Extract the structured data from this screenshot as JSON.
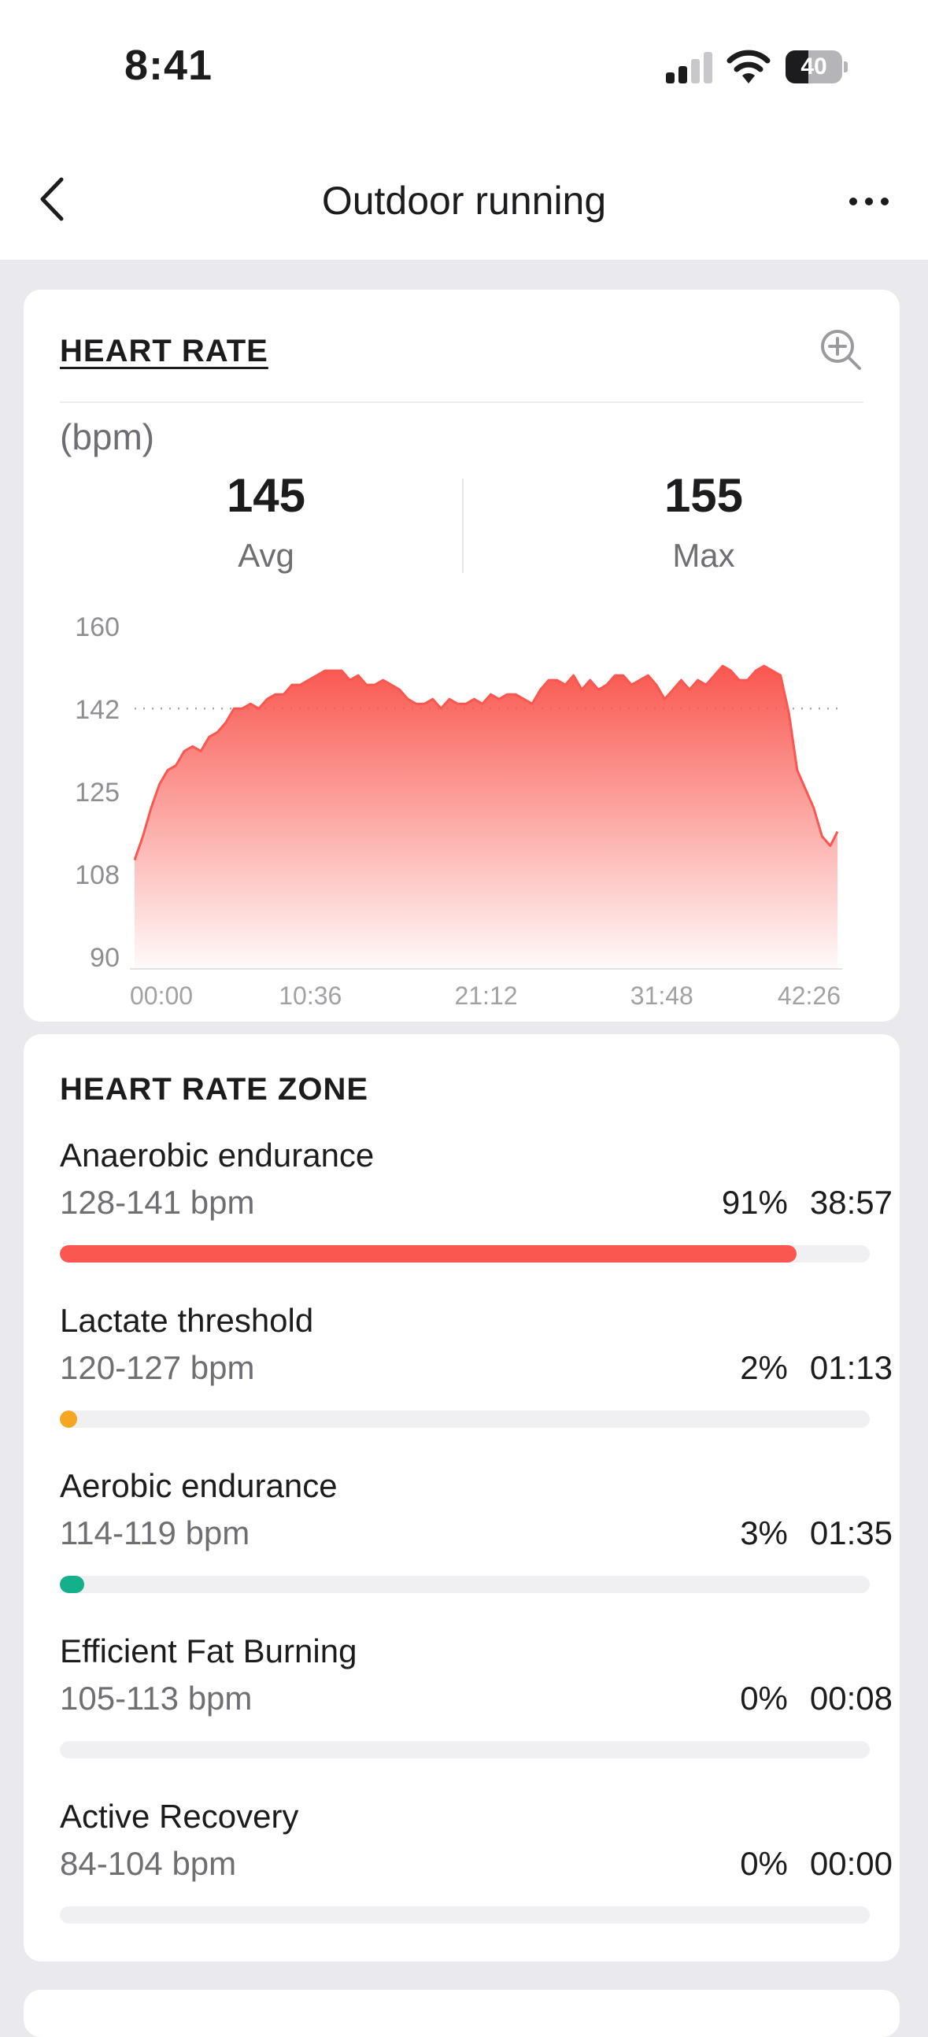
{
  "status_bar": {
    "time": "8:41",
    "battery": "40",
    "battery_level": 0.4
  },
  "nav": {
    "title": "Outdoor running"
  },
  "heart_rate": {
    "title": "HEART RATE",
    "unit": "(bpm)",
    "avg_value": "145",
    "avg_label": "Avg",
    "max_value": "155",
    "max_label": "Max"
  },
  "chart_data": {
    "type": "area",
    "title": "",
    "ylabel": "(bpm)",
    "ylim": [
      90,
      160
    ],
    "yticks": [
      "160",
      "142",
      "125",
      "108",
      "90"
    ],
    "xlim": [
      "00:00",
      "42:26"
    ],
    "xticks": [
      "00:00",
      "10:36",
      "21:12",
      "31:48",
      "42:26"
    ],
    "reference_line": {
      "value": 145,
      "label": "Avg",
      "style": "dotted"
    },
    "fill_color": "#f9574f",
    "x": [
      "00:00",
      "00:30",
      "01:00",
      "01:30",
      "02:00",
      "02:30",
      "03:00",
      "03:30",
      "04:00",
      "04:30",
      "05:00",
      "05:30",
      "06:00",
      "06:30",
      "07:00",
      "07:30",
      "08:00",
      "08:30",
      "09:00",
      "09:30",
      "10:00",
      "10:30",
      "11:00",
      "11:30",
      "12:00",
      "12:30",
      "13:00",
      "13:30",
      "14:00",
      "14:30",
      "15:00",
      "15:30",
      "16:00",
      "16:30",
      "17:00",
      "17:30",
      "18:00",
      "18:30",
      "19:00",
      "19:30",
      "20:00",
      "20:30",
      "21:00",
      "21:30",
      "22:00",
      "22:30",
      "23:00",
      "23:30",
      "24:00",
      "24:30",
      "25:00",
      "25:30",
      "26:00",
      "26:30",
      "27:00",
      "27:30",
      "28:00",
      "28:30",
      "29:00",
      "29:30",
      "30:00",
      "30:30",
      "31:00",
      "31:30",
      "32:00",
      "32:30",
      "33:00",
      "33:30",
      "34:00",
      "34:30",
      "35:00",
      "35:30",
      "36:00",
      "36:30",
      "37:00",
      "37:30",
      "38:00",
      "38:30",
      "39:00",
      "39:30",
      "40:00",
      "40:30",
      "41:00",
      "41:30",
      "42:00",
      "42:26"
    ],
    "series": [
      {
        "values": [
          113,
          118,
          124,
          129,
          132,
          133,
          136,
          137,
          136,
          139,
          140,
          142,
          145,
          145,
          146,
          145,
          147,
          148,
          148,
          150,
          150,
          151,
          152,
          153,
          153,
          153,
          151,
          152,
          150,
          150,
          151,
          150,
          149,
          147,
          146,
          146,
          147,
          145,
          147,
          146,
          146,
          147,
          146,
          148,
          147,
          148,
          148,
          147,
          146,
          149,
          151,
          151,
          150,
          152,
          149,
          151,
          149,
          150,
          152,
          152,
          150,
          151,
          152,
          150,
          147,
          149,
          151,
          149,
          151,
          150,
          152,
          154,
          153,
          151,
          151,
          153,
          154,
          153,
          152,
          144,
          132,
          128,
          124,
          118,
          116,
          119
        ]
      }
    ]
  },
  "zones": {
    "title": "HEART RATE ZONE",
    "items": [
      {
        "name": "Anaerobic endurance",
        "range": "128-141 bpm",
        "percent": "91%",
        "time": "38:57",
        "fraction": 0.91,
        "color": "#f9574f"
      },
      {
        "name": "Lactate threshold",
        "range": "120-127 bpm",
        "percent": "2%",
        "time": "01:13",
        "fraction": 0.02,
        "color": "#f5a623"
      },
      {
        "name": "Aerobic endurance",
        "range": "114-119 bpm",
        "percent": "3%",
        "time": "01:35",
        "fraction": 0.03,
        "color": "#14b08c"
      },
      {
        "name": "Efficient Fat Burning",
        "range": "105-113 bpm",
        "percent": "0%",
        "time": "00:08",
        "fraction": 0.0,
        "color": "#4a90e2"
      },
      {
        "name": "Active Recovery",
        "range": "84-104 bpm",
        "percent": "0%",
        "time": "00:00",
        "fraction": 0.0,
        "color": "#9b9b9b"
      }
    ]
  }
}
